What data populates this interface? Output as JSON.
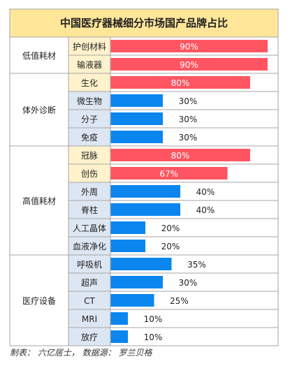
{
  "chart_data": {
    "type": "bar",
    "title": "中国医疗器械细分市场国产品牌占比",
    "xlim": [
      0,
      100
    ],
    "groups": [
      {
        "name": "低值耗材",
        "items": [
          {
            "label": "护创材料",
            "value": 90,
            "value_label": "90%",
            "highlight": true
          },
          {
            "label": "输液器",
            "value": 90,
            "value_label": "90%",
            "highlight": true
          }
        ]
      },
      {
        "name": "体外诊断",
        "items": [
          {
            "label": "生化",
            "value": 80,
            "value_label": "80%",
            "highlight": true
          },
          {
            "label": "微生物",
            "value": 30,
            "value_label": "30%",
            "highlight": false
          },
          {
            "label": "分子",
            "value": 30,
            "value_label": "30%",
            "highlight": false
          },
          {
            "label": "免疫",
            "value": 30,
            "value_label": "30%",
            "highlight": false
          }
        ]
      },
      {
        "name": "高值耗材",
        "items": [
          {
            "label": "冠脉",
            "value": 80,
            "value_label": "80%",
            "highlight": true
          },
          {
            "label": "创伤",
            "value": 67,
            "value_label": "67%",
            "highlight": true
          },
          {
            "label": "外周",
            "value": 40,
            "value_label": "40%",
            "highlight": false
          },
          {
            "label": "脊柱",
            "value": 40,
            "value_label": "40%",
            "highlight": false
          },
          {
            "label": "人工晶体",
            "value": 20,
            "value_label": "20%",
            "highlight": false
          },
          {
            "label": "血液净化",
            "value": 20,
            "value_label": "20%",
            "highlight": false
          }
        ]
      },
      {
        "name": "医疗设备",
        "items": [
          {
            "label": "呼吸机",
            "value": 35,
            "value_label": "35%",
            "highlight": false
          },
          {
            "label": "超声",
            "value": 30,
            "value_label": "30%",
            "highlight": false
          },
          {
            "label": "CT",
            "value": 25,
            "value_label": "25%",
            "highlight": false
          },
          {
            "label": "MRI",
            "value": 10,
            "value_label": "10%",
            "highlight": false
          },
          {
            "label": "放疗",
            "value": 10,
            "value_label": "10%",
            "highlight": false
          }
        ]
      }
    ]
  },
  "colors": {
    "title_bg": "#ffe699",
    "highlight_label_bg": "#fff2cc",
    "normal_label_bg": "#dde7f3",
    "highlight_bar": "#ff5562",
    "normal_bar": "#0a86ee",
    "grid": "#a6a6a6"
  },
  "footer": "制表： 六亿居士， 数据源： 罗兰贝格"
}
